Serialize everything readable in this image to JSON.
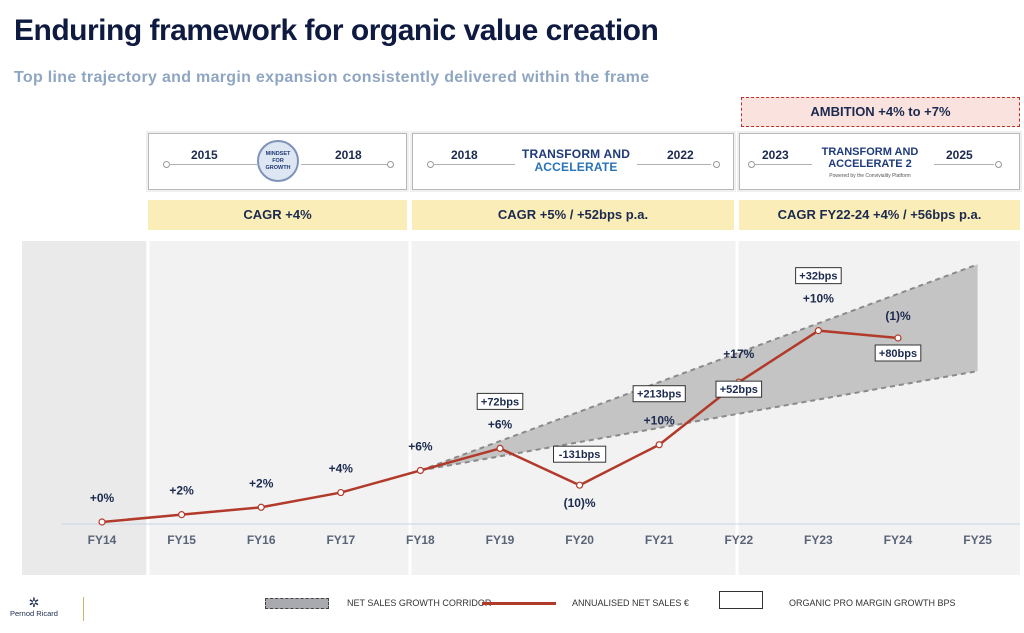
{
  "header": {
    "title": "Enduring framework for organic value creation",
    "subtitle": "Top line trajectory and margin expansion consistently delivered within the frame"
  },
  "ambition": "AMBITION +4% to +7%",
  "phases": [
    {
      "start": "2015",
      "end": "2018",
      "logo_line1": "MINDSET",
      "logo_line2": "FOR GROWTH",
      "cagr": "CAGR +4%"
    },
    {
      "start": "2018",
      "end": "2022",
      "logo_line1": "TRANSFORM AND",
      "logo_line2": "ACCELERATE",
      "cagr": "CAGR +5% / +52bps p.a."
    },
    {
      "start": "2023",
      "end": "2025",
      "logo_line1": "TRANSFORM AND",
      "logo_line2": "ACCELERATE 2",
      "logo_sub": "Powered by the Conviviality Platform",
      "cagr": "CAGR FY22-24 +4% / +56bps p.a."
    }
  ],
  "chart_data": {
    "type": "line",
    "title": "",
    "xlabel": "",
    "ylabel": "",
    "categories": [
      "FY14",
      "FY15",
      "FY16",
      "FY17",
      "FY18",
      "FY19",
      "FY20",
      "FY21",
      "FY22",
      "FY23",
      "FY24",
      "FY25"
    ],
    "series": [
      {
        "name": "ANNUALISED NET SALES €",
        "values": [
          0,
          2,
          4,
          8,
          14,
          20,
          10,
          21,
          38,
          52,
          50,
          null
        ],
        "growth_labels": [
          "+0%",
          "+2%",
          "+2%",
          "+4%",
          "+6%",
          "+6%",
          "(10)%",
          "+10%",
          "+17%",
          "+10%",
          "(1)%",
          ""
        ],
        "margin_labels": [
          "",
          "",
          "",
          "",
          "",
          "+72bps",
          "-131bps",
          "+213bps",
          "+52bps",
          "+32bps",
          "+80bps",
          ""
        ]
      }
    ],
    "corridor": {
      "name": "NET SALES GROWTH CORRIDOR",
      "x": [
        "FY18",
        "FY25"
      ],
      "upper": [
        14,
        70
      ],
      "lower": [
        14,
        41
      ]
    },
    "ylim": [
      -5,
      75
    ]
  },
  "legend": {
    "corridor": "NET SALES GROWTH CORRIDOR",
    "sales": "ANNUALISED NET SALES €",
    "margin": "ORGANIC PRO MARGIN GROWTH BPS"
  },
  "brand": "Pernod Ricard",
  "colors": {
    "line": "#b23a2b",
    "corridor": "#c4c4c4",
    "navy": "#1b2a4e",
    "panel": "#f2f2f2"
  }
}
